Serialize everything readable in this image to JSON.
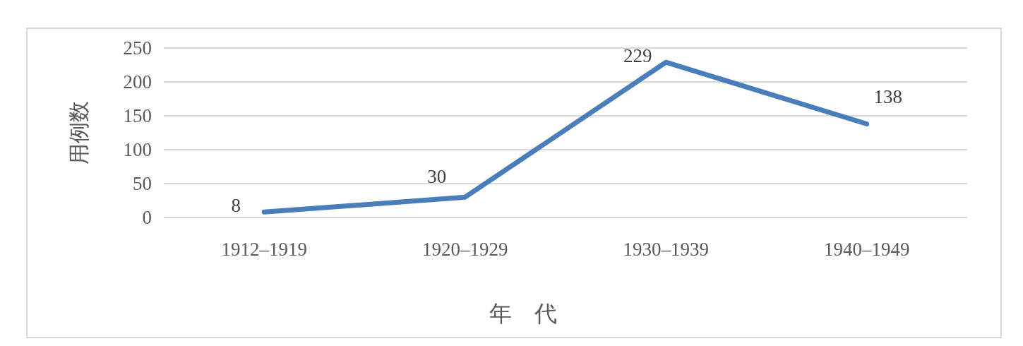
{
  "chart_data": {
    "type": "line",
    "xlabel": "年　代",
    "ylabel": "用例数",
    "categories": [
      "1912–1919",
      "1920–1929",
      "1930–1939",
      "1940–1949"
    ],
    "series": [
      {
        "color": "#4a7ebb",
        "values": [
          8,
          30,
          229,
          138
        ]
      }
    ],
    "ylim": [
      0,
      250
    ],
    "yticks": [
      0,
      50,
      100,
      150,
      200,
      250
    ],
    "grid": "y",
    "data_labels": true,
    "marker": "none",
    "line_style": "solid"
  }
}
